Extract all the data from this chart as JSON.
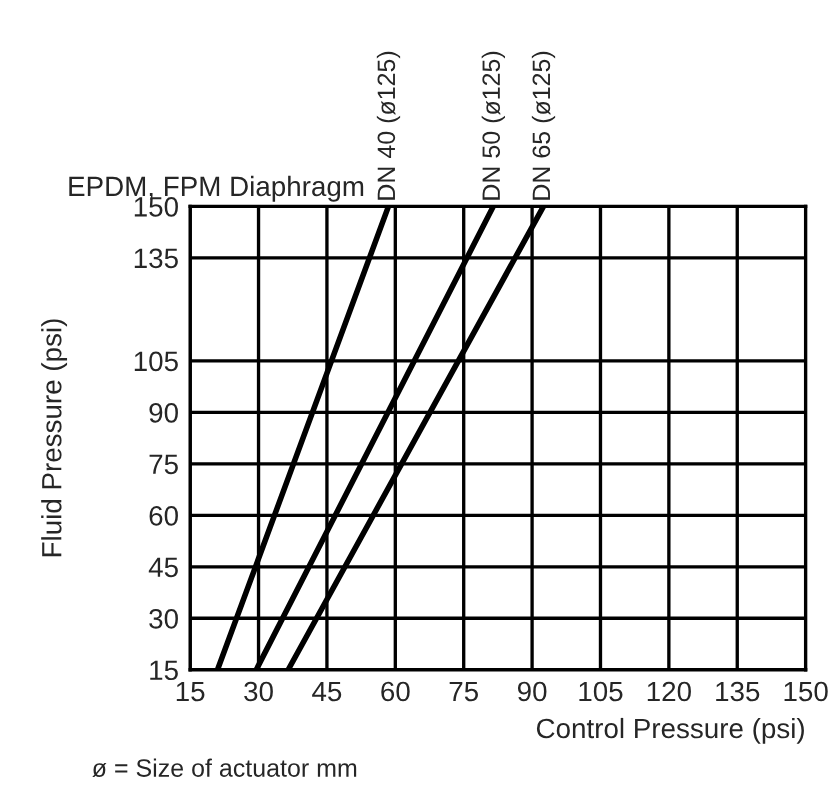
{
  "chart_data": {
    "type": "line",
    "title": "EPDM, FPM Diaphragm",
    "xlabel": "Control Pressure (psi)",
    "ylabel": "Fluid Pressure (psi)",
    "annotations": [
      "ø = Size of actuator mm"
    ],
    "series": [
      {
        "name": "DN 40 (ø125)",
        "color": "#000000",
        "x": [
          21,
          58.5
        ],
        "values": [
          15,
          150
        ]
      },
      {
        "name": "DN 50 (ø125)",
        "color": "#000000",
        "x": [
          29.5,
          81.5
        ],
        "values": [
          15,
          150
        ]
      },
      {
        "name": "DN 65 (ø125)",
        "color": "#000000",
        "x": [
          36.5,
          92.5
        ],
        "values": [
          15,
          150
        ]
      }
    ],
    "xlim": [
      15,
      150
    ],
    "xticks": [
      15,
      30,
      45,
      60,
      75,
      90,
      105,
      120,
      135,
      150
    ],
    "ylim": [
      15,
      150
    ],
    "yticks": [
      15,
      30,
      45,
      60,
      75,
      90,
      105,
      135,
      150
    ],
    "grid": true,
    "legend": false,
    "marker": "none",
    "line_style": "solid"
  }
}
